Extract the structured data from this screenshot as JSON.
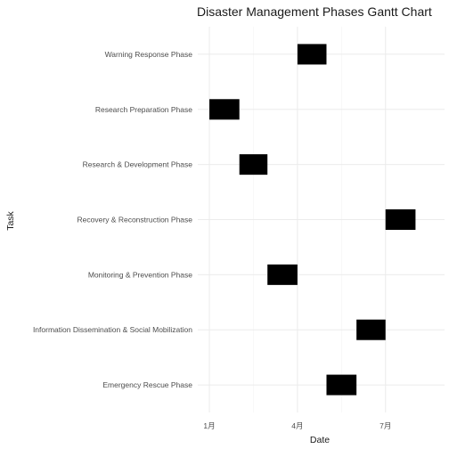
{
  "chart_data": {
    "type": "bar",
    "subtype": "gantt",
    "title": "Disaster Management Phases Gantt Chart",
    "xlabel": "Date",
    "ylabel": "Task",
    "x_ticks": [
      {
        "label": "1月",
        "value": "2024-01-01"
      },
      {
        "label": "4月",
        "value": "2024-04-01"
      },
      {
        "label": "7月",
        "value": "2024-07-01"
      }
    ],
    "xlim": [
      "2023-12-20",
      "2024-08-31"
    ],
    "bar_color": "#000000",
    "grid": true,
    "tasks": [
      {
        "name": "Warning Response Phase",
        "start": "2024-04-01",
        "end": "2024-05-01"
      },
      {
        "name": "Research Preparation Phase",
        "start": "2024-01-01",
        "end": "2024-02-01"
      },
      {
        "name": "Research & Development Phase",
        "start": "2024-02-01",
        "end": "2024-03-01"
      },
      {
        "name": "Recovery & Reconstruction Phase",
        "start": "2024-07-01",
        "end": "2024-08-01"
      },
      {
        "name": "Monitoring & Prevention Phase",
        "start": "2024-03-01",
        "end": "2024-04-01"
      },
      {
        "name": "Information Dissemination & Social Mobilization",
        "start": "2024-06-01",
        "end": "2024-07-01"
      },
      {
        "name": "Emergency Rescue Phase",
        "start": "2024-05-01",
        "end": "2024-06-01"
      }
    ]
  }
}
